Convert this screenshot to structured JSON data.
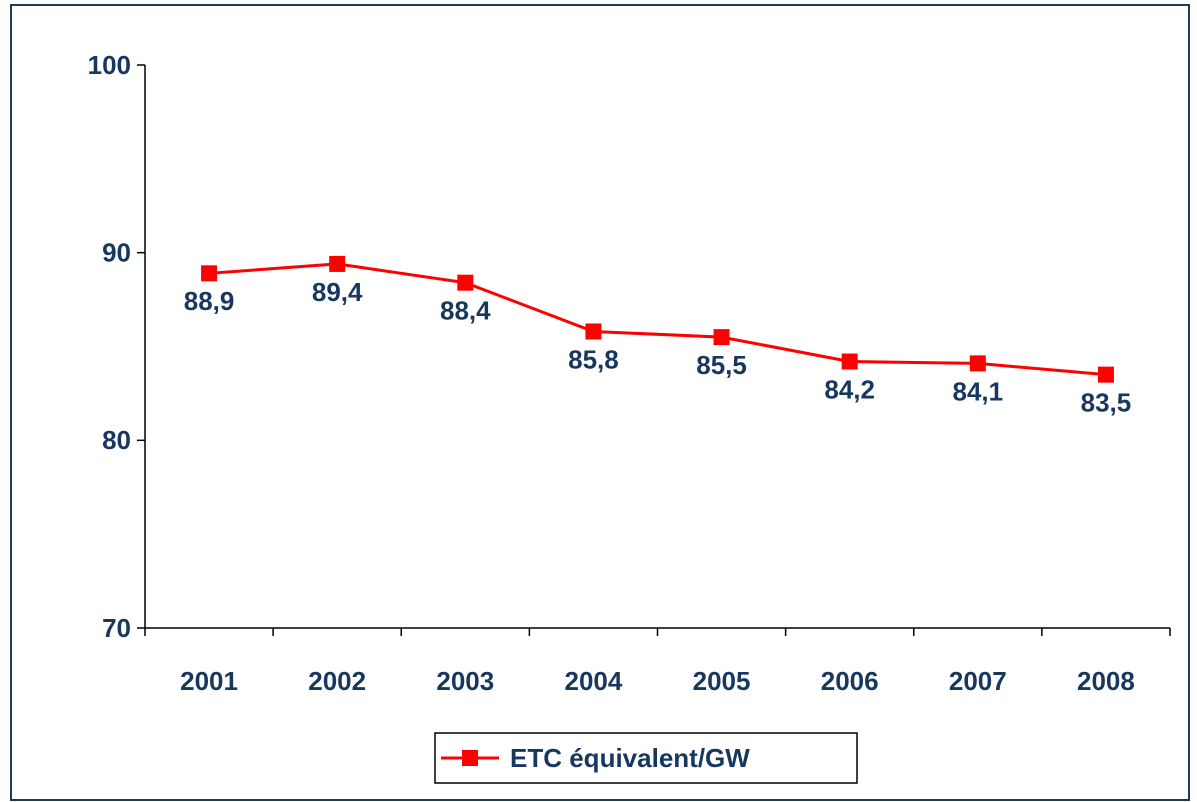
{
  "chart_data": {
    "type": "line",
    "categories": [
      "2001",
      "2002",
      "2003",
      "2004",
      "2005",
      "2006",
      "2007",
      "2008"
    ],
    "series": [
      {
        "name": "ETC équivalent/GW",
        "color": "#ff0000",
        "values": [
          88.9,
          89.4,
          88.4,
          85.8,
          85.5,
          84.2,
          84.1,
          83.5
        ],
        "value_labels": [
          "88,9",
          "89,4",
          "88,4",
          "85,8",
          "85,5",
          "84,2",
          "84,1",
          "83,5"
        ]
      }
    ],
    "ylim": [
      70,
      100
    ],
    "yticks": [
      70,
      80,
      90,
      100
    ],
    "grid": false,
    "legend": "bottom"
  }
}
